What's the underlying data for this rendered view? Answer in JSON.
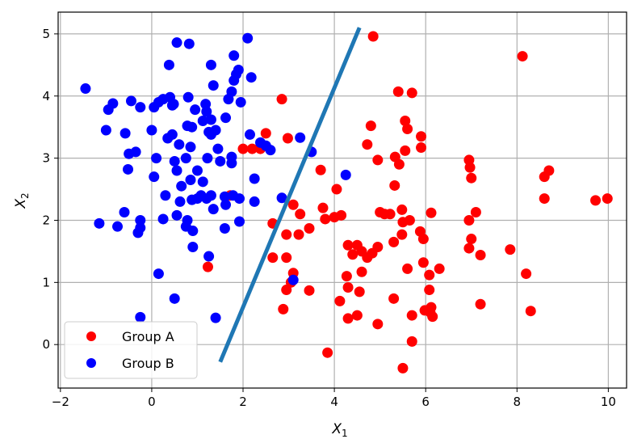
{
  "chart_data": {
    "type": "scatter",
    "title": "",
    "xlabel": {
      "base": "X",
      "sub": "1"
    },
    "ylabel": {
      "base": "X",
      "sub": "2"
    },
    "xlim": [
      -2.05,
      10.4
    ],
    "ylim": [
      -0.7,
      5.35
    ],
    "xticks": [
      -2,
      0,
      2,
      4,
      6,
      8,
      10
    ],
    "yticks": [
      0,
      1,
      2,
      3,
      4,
      5
    ],
    "grid": true,
    "legend": {
      "position": "lower-left"
    },
    "series": [
      {
        "name": "Group A",
        "color": "#ff0000",
        "points": [
          [
            4.85,
            4.96
          ],
          [
            8.12,
            4.64
          ],
          [
            5.4,
            4.07
          ],
          [
            5.7,
            4.05
          ],
          [
            2.85,
            3.95
          ],
          [
            2.5,
            3.4
          ],
          [
            2.98,
            3.32
          ],
          [
            4.8,
            3.52
          ],
          [
            5.55,
            3.6
          ],
          [
            5.6,
            3.47
          ],
          [
            5.9,
            3.35
          ],
          [
            5.9,
            3.17
          ],
          [
            4.72,
            3.22
          ],
          [
            5.55,
            3.12
          ],
          [
            5.33,
            3.02
          ],
          [
            5.42,
            2.9
          ],
          [
            4.95,
            2.97
          ],
          [
            2.0,
            3.15
          ],
          [
            2.2,
            3.15
          ],
          [
            2.38,
            3.15
          ],
          [
            3.7,
            2.81
          ],
          [
            5.32,
            2.56
          ],
          [
            4.05,
            2.5
          ],
          [
            3.1,
            2.25
          ],
          [
            3.75,
            2.2
          ],
          [
            4.0,
            2.05
          ],
          [
            3.8,
            2.02
          ],
          [
            4.15,
            2.08
          ],
          [
            3.25,
            2.1
          ],
          [
            2.65,
            1.95
          ],
          [
            3.45,
            1.87
          ],
          [
            2.95,
            1.77
          ],
          [
            3.22,
            1.77
          ],
          [
            5.0,
            2.13
          ],
          [
            5.1,
            2.1
          ],
          [
            5.22,
            2.1
          ],
          [
            5.48,
            2.17
          ],
          [
            5.65,
            2.0
          ],
          [
            5.5,
            1.97
          ],
          [
            5.88,
            1.82
          ],
          [
            5.95,
            1.7
          ],
          [
            6.12,
            2.12
          ],
          [
            5.3,
            1.65
          ],
          [
            4.95,
            1.57
          ],
          [
            5.48,
            1.77
          ],
          [
            4.3,
            1.6
          ],
          [
            4.5,
            1.6
          ],
          [
            4.4,
            1.45
          ],
          [
            4.6,
            1.5
          ],
          [
            4.72,
            1.4
          ],
          [
            4.83,
            1.47
          ],
          [
            6.3,
            1.22
          ],
          [
            6.08,
            1.12
          ],
          [
            5.6,
            1.22
          ],
          [
            5.95,
            1.32
          ],
          [
            4.6,
            1.17
          ],
          [
            4.27,
            1.1
          ],
          [
            4.3,
            0.92
          ],
          [
            4.55,
            0.85
          ],
          [
            3.1,
            1.15
          ],
          [
            3.05,
            1.0
          ],
          [
            2.95,
            0.88
          ],
          [
            3.45,
            0.87
          ],
          [
            2.65,
            1.4
          ],
          [
            2.95,
            1.4
          ],
          [
            1.23,
            1.25
          ],
          [
            6.08,
            0.88
          ],
          [
            5.3,
            0.74
          ],
          [
            4.12,
            0.7
          ],
          [
            6.12,
            0.6
          ],
          [
            6.1,
            0.52
          ],
          [
            5.98,
            0.55
          ],
          [
            6.15,
            0.45
          ],
          [
            5.7,
            0.47
          ],
          [
            4.5,
            0.47
          ],
          [
            4.3,
            0.42
          ],
          [
            2.88,
            0.57
          ],
          [
            4.95,
            0.33
          ],
          [
            5.7,
            0.05
          ],
          [
            3.85,
            -0.13
          ],
          [
            5.5,
            -0.38
          ],
          [
            7.2,
            0.65
          ],
          [
            8.3,
            0.54
          ],
          [
            8.2,
            1.14
          ],
          [
            7.2,
            1.44
          ],
          [
            7.85,
            1.53
          ],
          [
            6.95,
            1.55
          ],
          [
            7.0,
            1.7
          ],
          [
            7.1,
            2.13
          ],
          [
            6.95,
            2.0
          ],
          [
            6.95,
            2.97
          ],
          [
            6.97,
            2.85
          ],
          [
            7.0,
            2.68
          ],
          [
            8.6,
            2.7
          ],
          [
            8.7,
            2.8
          ],
          [
            8.6,
            2.35
          ],
          [
            9.72,
            2.32
          ],
          [
            9.98,
            2.35
          ],
          [
            1.72,
            2.4
          ]
        ]
      },
      {
        "name": "Group B",
        "color": "#0000ff",
        "points": [
          [
            0.55,
            4.86
          ],
          [
            0.82,
            4.84
          ],
          [
            2.1,
            4.93
          ],
          [
            1.8,
            4.65
          ],
          [
            0.38,
            4.5
          ],
          [
            1.3,
            4.5
          ],
          [
            1.9,
            4.42
          ],
          [
            1.8,
            4.25
          ],
          [
            2.18,
            4.3
          ],
          [
            1.85,
            4.35
          ],
          [
            1.35,
            4.17
          ],
          [
            0.4,
            3.98
          ],
          [
            0.25,
            3.95
          ],
          [
            0.8,
            3.98
          ],
          [
            0.05,
            3.82
          ],
          [
            0.15,
            3.9
          ],
          [
            -0.45,
            3.92
          ],
          [
            -0.25,
            3.82
          ],
          [
            -0.85,
            3.88
          ],
          [
            -0.95,
            3.78
          ],
          [
            -1.45,
            4.12
          ],
          [
            0.48,
            3.87
          ],
          [
            0.95,
            3.78
          ],
          [
            1.2,
            3.75
          ],
          [
            1.18,
            3.87
          ],
          [
            1.75,
            4.07
          ],
          [
            1.68,
            3.95
          ],
          [
            1.95,
            3.9
          ],
          [
            1.62,
            3.65
          ],
          [
            1.3,
            3.62
          ],
          [
            1.4,
            3.45
          ],
          [
            1.12,
            3.6
          ],
          [
            0.88,
            3.5
          ],
          [
            0.78,
            3.52
          ],
          [
            0.45,
            3.85
          ],
          [
            0.45,
            3.38
          ],
          [
            0.35,
            3.32
          ],
          [
            0.6,
            3.22
          ],
          [
            0.0,
            3.45
          ],
          [
            -0.58,
            3.4
          ],
          [
            -1.0,
            3.45
          ],
          [
            -0.35,
            3.1
          ],
          [
            -0.5,
            3.07
          ],
          [
            -0.52,
            2.82
          ],
          [
            0.1,
            3.0
          ],
          [
            0.5,
            2.95
          ],
          [
            0.55,
            2.8
          ],
          [
            0.85,
            3.18
          ],
          [
            0.75,
            3.0
          ],
          [
            1.22,
            3.0
          ],
          [
            1.3,
            3.38
          ],
          [
            1.25,
            3.42
          ],
          [
            1.45,
            3.15
          ],
          [
            1.5,
            2.95
          ],
          [
            1.75,
            3.02
          ],
          [
            1.75,
            2.92
          ],
          [
            2.15,
            3.38
          ],
          [
            2.38,
            3.25
          ],
          [
            2.5,
            3.2
          ],
          [
            2.6,
            3.13
          ],
          [
            3.25,
            3.33
          ],
          [
            3.5,
            3.1
          ],
          [
            2.25,
            2.67
          ],
          [
            1.0,
            2.8
          ],
          [
            0.85,
            2.65
          ],
          [
            0.65,
            2.55
          ],
          [
            0.05,
            2.7
          ],
          [
            1.12,
            2.62
          ],
          [
            0.3,
            2.4
          ],
          [
            0.62,
            2.3
          ],
          [
            0.88,
            2.33
          ],
          [
            1.0,
            2.35
          ],
          [
            1.08,
            2.4
          ],
          [
            1.3,
            2.4
          ],
          [
            1.2,
            2.35
          ],
          [
            1.6,
            2.38
          ],
          [
            1.78,
            2.4
          ],
          [
            1.92,
            2.35
          ],
          [
            1.62,
            2.25
          ],
          [
            1.35,
            2.18
          ],
          [
            2.25,
            2.3
          ],
          [
            2.85,
            2.36
          ],
          [
            0.78,
            2.0
          ],
          [
            0.25,
            2.02
          ],
          [
            -0.25,
            2.0
          ],
          [
            -0.25,
            1.88
          ],
          [
            -0.3,
            1.8
          ],
          [
            -0.6,
            2.13
          ],
          [
            -1.15,
            1.95
          ],
          [
            -0.75,
            1.9
          ],
          [
            0.55,
            2.08
          ],
          [
            1.92,
            1.98
          ],
          [
            1.6,
            1.87
          ],
          [
            0.75,
            1.9
          ],
          [
            0.9,
            1.83
          ],
          [
            1.25,
            1.42
          ],
          [
            0.9,
            1.57
          ],
          [
            0.15,
            1.14
          ],
          [
            0.5,
            0.74
          ],
          [
            -0.25,
            0.44
          ],
          [
            1.4,
            0.43
          ],
          [
            3.1,
            1.04
          ],
          [
            4.25,
            2.73
          ]
        ]
      }
    ]
  }
}
